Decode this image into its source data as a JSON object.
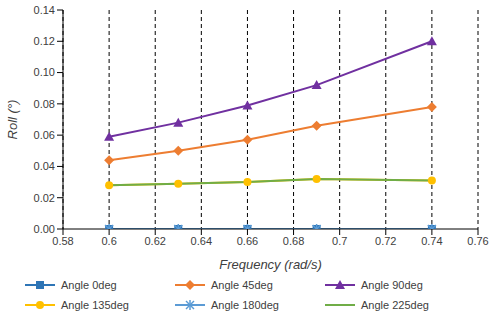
{
  "chart_data": {
    "type": "line",
    "x_label": "Frequency (rad/s)",
    "y_label": "Roll (°)",
    "x": [
      0.6,
      0.63,
      0.66,
      0.69,
      0.74
    ],
    "xlim": [
      0.58,
      0.76
    ],
    "xticks": [
      0.58,
      0.6,
      0.62,
      0.64,
      0.66,
      0.68,
      0.7,
      0.72,
      0.74,
      0.76
    ],
    "ylim": [
      0,
      0.14
    ],
    "yticks": [
      {
        "value": 0,
        "label": "0.00"
      },
      0.02,
      0.04,
      0.06,
      0.08,
      {
        "value": 0.1,
        "label": "0.10"
      },
      0.12,
      0.14
    ],
    "grid": "x",
    "legend": "bottom",
    "series": [
      {
        "name": "Angle 0deg",
        "color": "#2e75b6",
        "marker": "square",
        "values": [
          0,
          0,
          0,
          0,
          0
        ]
      },
      {
        "name": "Angle 45deg",
        "color": "#ed7d31",
        "marker": "diamond",
        "values": [
          0.044,
          0.05,
          0.057,
          0.066,
          0.078
        ]
      },
      {
        "name": "Angle 90deg",
        "color": "#7030a0",
        "marker": "triangle",
        "values": [
          0.059,
          0.068,
          0.079,
          0.092,
          0.12
        ]
      },
      {
        "name": "Angle 135deg",
        "color": "#ffc000",
        "marker": "circle",
        "values": [
          0.028,
          0.029,
          0.03,
          0.032,
          0.031
        ]
      },
      {
        "name": "Angle 180deg",
        "color": "#5b9bd5",
        "marker": "star",
        "values": [
          0,
          0,
          0,
          0,
          0
        ]
      },
      {
        "name": "Angle 225deg",
        "color": "#70ad47",
        "marker": "none",
        "values": [
          0.028,
          0.029,
          0.03,
          0.032,
          0.031
        ]
      }
    ]
  }
}
